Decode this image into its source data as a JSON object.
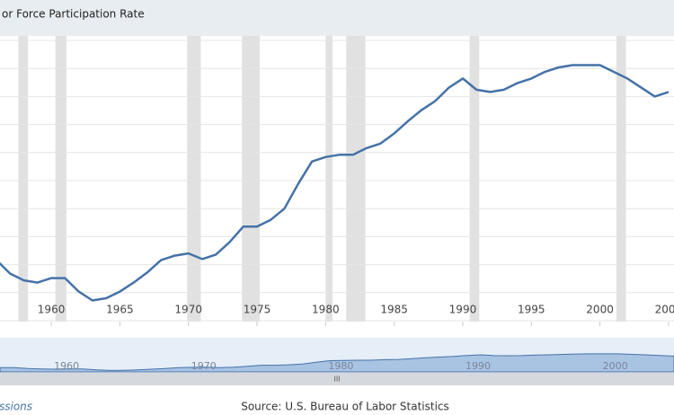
{
  "chart_data": {
    "type": "line",
    "title": "or Force Participation Rate",
    "source": "Source: U.S. Bureau of Labor Statistics",
    "recessions_link": "ssions",
    "x": [
      1956,
      1957,
      1958,
      1959,
      1960,
      1961,
      1962,
      1963,
      1964,
      1965,
      1966,
      1967,
      1968,
      1969,
      1970,
      1971,
      1972,
      1973,
      1974,
      1975,
      1976,
      1977,
      1978,
      1979,
      1980,
      1981,
      1982,
      1983,
      1984,
      1985,
      1986,
      1987,
      1988,
      1989,
      1990,
      1991,
      1992,
      1993,
      1994,
      1995,
      1996,
      1997,
      1998,
      1999,
      2000,
      2001,
      2002,
      2003,
      2004,
      2005
    ],
    "series": [
      {
        "name": "Labor Force Participation Rate",
        "color": "#4572a7",
        "values": [
          40.4,
          39.2,
          38.6,
          38.4,
          38.8,
          38.8,
          37.6,
          36.8,
          37.0,
          37.6,
          38.4,
          39.3,
          40.4,
          40.8,
          41.0,
          40.5,
          40.9,
          42.0,
          43.4,
          43.4,
          44.0,
          45.0,
          47.2,
          49.2,
          49.6,
          49.8,
          49.8,
          50.4,
          50.8,
          51.7,
          52.8,
          53.8,
          54.6,
          55.8,
          56.6,
          55.6,
          55.4,
          55.6,
          56.2,
          56.6,
          57.2,
          57.6,
          57.8,
          57.8,
          57.8,
          57.2,
          56.6,
          55.8,
          55.0,
          55.4
        ]
      }
    ],
    "recessions": [
      [
        1957.6,
        1958.3
      ],
      [
        1960.3,
        1961.1
      ],
      [
        1969.9,
        1970.9
      ],
      [
        1973.9,
        1975.2
      ],
      [
        1980.0,
        1980.5
      ],
      [
        1981.5,
        1982.9
      ],
      [
        1990.5,
        1991.2
      ],
      [
        2001.2,
        2001.9
      ]
    ],
    "xlim": [
      1956.26,
      2005.4
    ],
    "ylim": [
      35,
      60
    ],
    "xticks": [
      1960,
      1965,
      1970,
      1975,
      1980,
      1985,
      1990,
      1995,
      2000,
      2005
    ],
    "navigator_ticks": [
      1960,
      1970,
      1980,
      1990,
      2000
    ],
    "grid": true
  }
}
